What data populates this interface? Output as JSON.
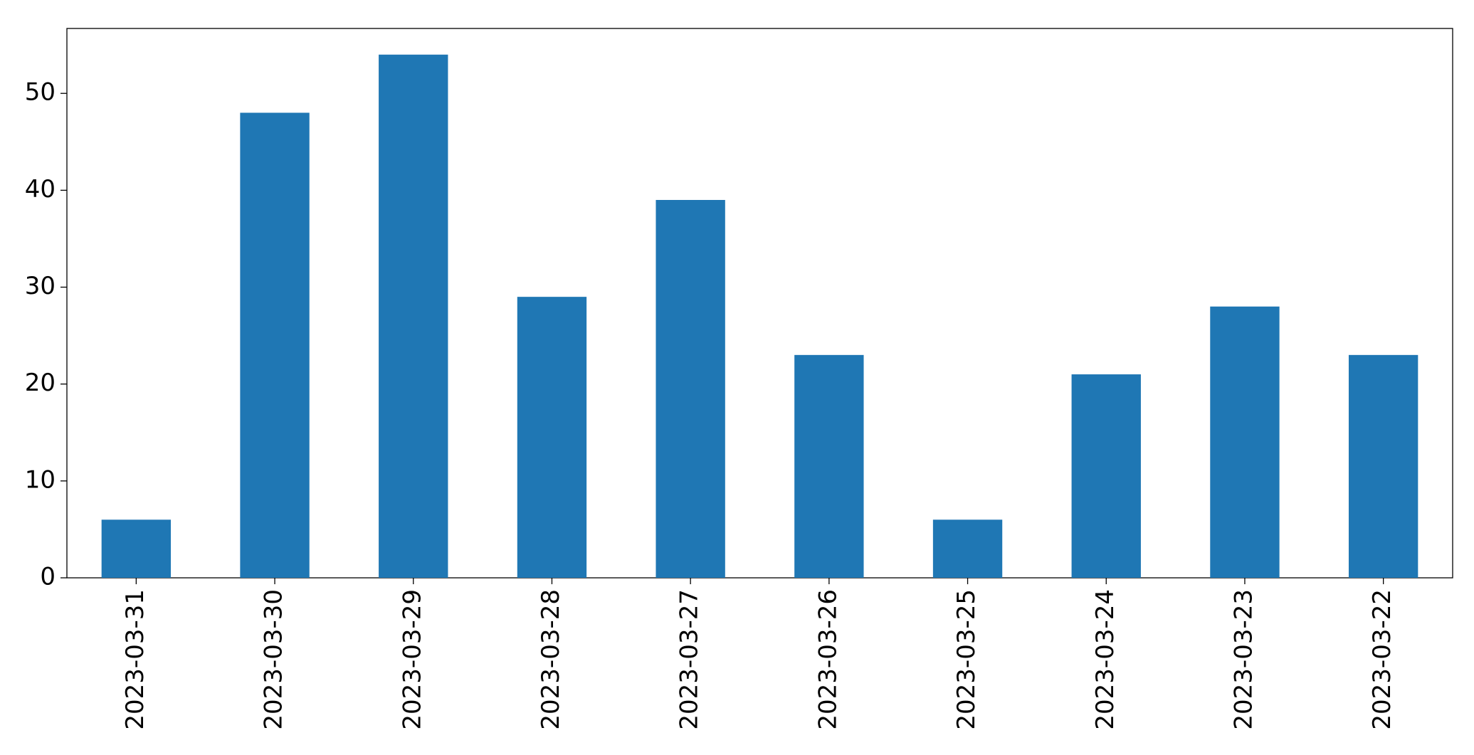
{
  "chart_data": {
    "type": "bar",
    "categories": [
      "2023-03-31",
      "2023-03-30",
      "2023-03-29",
      "2023-03-28",
      "2023-03-27",
      "2023-03-26",
      "2023-03-25",
      "2023-03-24",
      "2023-03-23",
      "2023-03-22"
    ],
    "values": [
      6,
      48,
      54,
      29,
      39,
      23,
      6,
      21,
      28,
      23
    ],
    "color": "#1f77b4",
    "ylim": [
      0,
      56.7
    ],
    "yticks": [
      0,
      10,
      20,
      30,
      40,
      50
    ],
    "grid": false
  }
}
